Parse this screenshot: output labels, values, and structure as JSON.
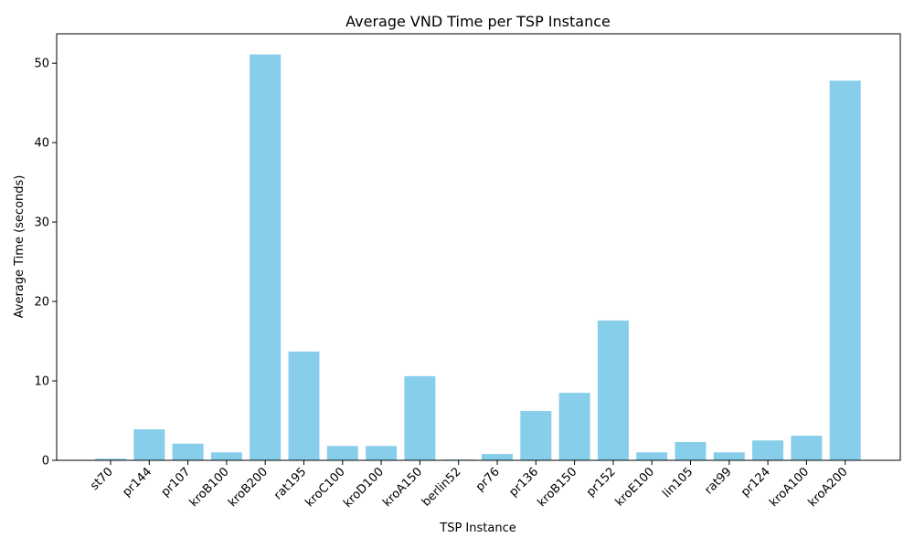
{
  "chart_data": {
    "type": "bar",
    "title": "Average VND Time per TSP Instance",
    "xlabel": "TSP Instance",
    "ylabel": "Average Time (seconds)",
    "ylim": [
      0,
      53.7
    ],
    "yticks": [
      0,
      10,
      20,
      30,
      40,
      50
    ],
    "categories": [
      "st70",
      "pr144",
      "pr107",
      "kroB100",
      "kroB200",
      "rat195",
      "kroC100",
      "kroD100",
      "kroA150",
      "berlin52",
      "pr76",
      "pr136",
      "kroB150",
      "pr152",
      "kroE100",
      "lin105",
      "rat99",
      "pr124",
      "kroA100",
      "kroA200"
    ],
    "values": [
      0.2,
      3.9,
      2.1,
      1.0,
      51.1,
      13.7,
      1.8,
      1.8,
      10.6,
      0.1,
      0.8,
      6.2,
      8.5,
      17.6,
      1.0,
      2.3,
      1.0,
      2.5,
      3.1,
      47.8
    ],
    "color": "#87CEEB"
  }
}
